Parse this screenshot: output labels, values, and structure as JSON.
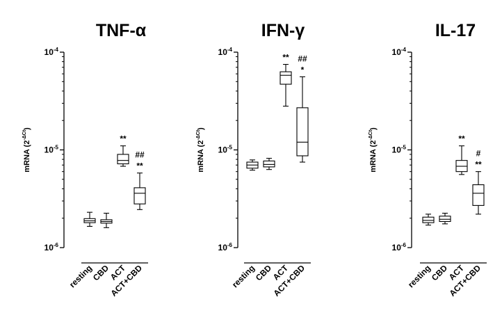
{
  "chart_data": [
    {
      "type": "box",
      "title": "TNF-α",
      "ylabel": "mRNA (2^-ΔCt)",
      "ylabel_base": "mRNA (2",
      "ylabel_exp": "-ΔCt",
      "ylabel_close": ")",
      "yscale": "log",
      "ylim": [
        1e-06,
        0.0001
      ],
      "yticks": [
        {
          "value": 1e-06,
          "base": "10",
          "exp": "-6"
        },
        {
          "value": 1e-05,
          "base": "10",
          "exp": "-5"
        },
        {
          "value": 0.0001,
          "base": "10",
          "exp": "-4"
        }
      ],
      "categories": [
        "resting",
        "CBD",
        "ACT",
        "ACT+CBD"
      ],
      "boxes": [
        {
          "min": 1.65e-06,
          "q1": 1.8e-06,
          "median": 1.88e-06,
          "q3": 1.98e-06,
          "max": 2.3e-06,
          "annotation": ""
        },
        {
          "min": 1.6e-06,
          "q1": 1.78e-06,
          "median": 1.85e-06,
          "q3": 1.93e-06,
          "max": 2.25e-06,
          "annotation": ""
        },
        {
          "min": 6.8e-06,
          "q1": 7.2e-06,
          "median": 7.8e-06,
          "q3": 9e-06,
          "max": 1.1e-05,
          "annotation": "**"
        },
        {
          "min": 2.45e-06,
          "q1": 2.8e-06,
          "median": 3.6e-06,
          "q3": 4.1e-06,
          "max": 5.8e-06,
          "annotation": "##\n**"
        }
      ]
    },
    {
      "type": "box",
      "title": "IFN-γ",
      "ylabel": "mRNA (2^-ΔCt)",
      "ylabel_base": "mRNA (2",
      "ylabel_exp": "-ΔCt",
      "ylabel_close": ")",
      "yscale": "log",
      "ylim": [
        1e-06,
        0.0001
      ],
      "yticks": [
        {
          "value": 1e-06,
          "base": "10",
          "exp": "-6"
        },
        {
          "value": 1e-05,
          "base": "10",
          "exp": "-5"
        },
        {
          "value": 0.0001,
          "base": "10",
          "exp": "-4"
        }
      ],
      "categories": [
        "resting",
        "CBD",
        "ACT",
        "ACT+CBD"
      ],
      "boxes": [
        {
          "min": 6.2e-06,
          "q1": 6.5e-06,
          "median": 7e-06,
          "q3": 7.5e-06,
          "max": 7.9e-06,
          "annotation": ""
        },
        {
          "min": 6.3e-06,
          "q1": 6.7e-06,
          "median": 7.1e-06,
          "q3": 7.7e-06,
          "max": 8.2e-06,
          "annotation": ""
        },
        {
          "min": 2.8e-05,
          "q1": 4.7e-05,
          "median": 5.8e-05,
          "q3": 6.3e-05,
          "max": 7.5e-05,
          "annotation": "**"
        },
        {
          "min": 7.5e-06,
          "q1": 8.7e-06,
          "median": 1.2e-05,
          "q3": 2.7e-05,
          "max": 5.6e-05,
          "annotation": "##\n*"
        }
      ]
    },
    {
      "type": "box",
      "title": "IL-17",
      "ylabel": "mRNA (2^-ΔCt)",
      "ylabel_base": "mRNA (2",
      "ylabel_exp": "-ΔCt",
      "ylabel_close": ")",
      "yscale": "log",
      "ylim": [
        1e-06,
        0.0001
      ],
      "yticks": [
        {
          "value": 1e-06,
          "base": "10",
          "exp": "-6"
        },
        {
          "value": 1e-05,
          "base": "10",
          "exp": "-5"
        },
        {
          "value": 0.0001,
          "base": "10",
          "exp": "-4"
        }
      ],
      "categories": [
        "resting",
        "CBD",
        "ACT",
        "ACT+CBD"
      ],
      "boxes": [
        {
          "min": 1.7e-06,
          "q1": 1.8e-06,
          "median": 1.9e-06,
          "q3": 2.05e-06,
          "max": 2.2e-06,
          "annotation": ""
        },
        {
          "min": 1.75e-06,
          "q1": 1.85e-06,
          "median": 1.95e-06,
          "q3": 2.1e-06,
          "max": 2.25e-06,
          "annotation": ""
        },
        {
          "min": 5.6e-06,
          "q1": 6e-06,
          "median": 6.8e-06,
          "q3": 7.8e-06,
          "max": 1.1e-05,
          "annotation": "**"
        },
        {
          "min": 2.2e-06,
          "q1": 2.7e-06,
          "median": 3.6e-06,
          "q3": 4.4e-06,
          "max": 6e-06,
          "annotation": "#\n**"
        }
      ]
    }
  ]
}
